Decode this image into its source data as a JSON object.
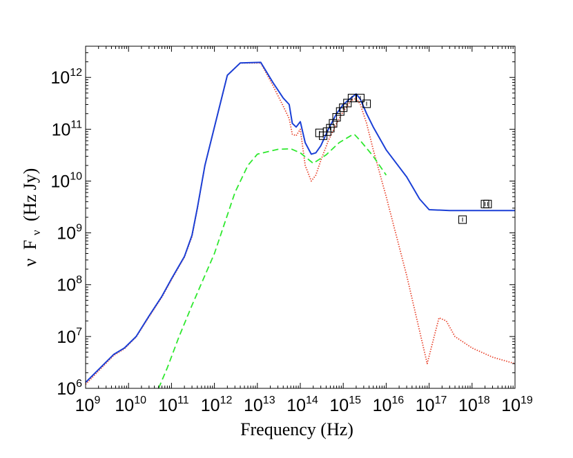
{
  "chart_data": {
    "type": "line",
    "title": "",
    "xlabel": "Frequency (Hz)",
    "ylabel_parts": {
      "nu": "ν",
      "F": "F",
      "sub": "ν",
      "unit": "(Hz Jy)"
    },
    "xscale": "log",
    "yscale": "log",
    "xlim": [
      1000000000.0,
      1e+19
    ],
    "ylim": [
      1000000.0,
      4000000000000.0
    ],
    "grid": false,
    "legend": "none",
    "x_ticks": [
      {
        "value": 1000000000.0,
        "base": "10",
        "exp": "9"
      },
      {
        "value": 10000000000.0,
        "base": "10",
        "exp": "10"
      },
      {
        "value": 100000000000.0,
        "base": "10",
        "exp": "11"
      },
      {
        "value": 1000000000000.0,
        "base": "10",
        "exp": "12"
      },
      {
        "value": 10000000000000.0,
        "base": "10",
        "exp": "13"
      },
      {
        "value": 100000000000000.0,
        "base": "10",
        "exp": "14"
      },
      {
        "value": 1000000000000000.0,
        "base": "10",
        "exp": "15"
      },
      {
        "value": 1e+16,
        "base": "10",
        "exp": "16"
      },
      {
        "value": 1e+17,
        "base": "10",
        "exp": "17"
      },
      {
        "value": 1e+18,
        "base": "10",
        "exp": "18"
      },
      {
        "value": 1e+19,
        "base": "10",
        "exp": "19"
      }
    ],
    "y_ticks": [
      {
        "value": 1000000.0,
        "base": "10",
        "exp": "6"
      },
      {
        "value": 10000000.0,
        "base": "10",
        "exp": "7"
      },
      {
        "value": 100000000.0,
        "base": "10",
        "exp": "8"
      },
      {
        "value": 1000000000.0,
        "base": "10",
        "exp": "9"
      },
      {
        "value": 10000000000.0,
        "base": "10",
        "exp": "10"
      },
      {
        "value": 100000000000.0,
        "base": "10",
        "exp": "11"
      },
      {
        "value": 1000000000000.0,
        "base": "10",
        "exp": "12"
      }
    ],
    "series": [
      {
        "style": "solid",
        "color": "#1a3fd6",
        "x": [
          1000000000.0,
          4500000000.0,
          8000000000.0,
          15000000000.0,
          30000000000.0,
          60000000000.0,
          100000000000.0,
          200000000000.0,
          300000000000.0,
          400000000000.0,
          600000000000.0,
          1000000000000.0,
          2000000000000.0,
          4000000000000.0,
          12000000000000.0,
          23000000000000.0,
          40000000000000.0,
          55000000000000.0,
          65000000000000.0,
          80000000000000.0,
          100000000000000.0,
          130000000000000.0,
          180000000000000.0,
          230000000000000.0,
          300000000000000.0,
          450000000000000.0,
          700000000000000.0,
          1000000000000000.0,
          1500000000000000.0,
          2000000000000000.0,
          2500000000000000.0,
          3500000000000000.0,
          5000000000000000.0,
          1e+16,
          3e+16,
          6e+16,
          1e+17,
          3e+17,
          1e+18,
          1e+19
        ],
        "y": [
          1300000.0,
          4500000.0,
          6000000.0,
          10000000.0,
          25000000.0,
          60000000.0,
          130000000.0,
          350000000.0,
          900000000.0,
          3000000000.0,
          20000000000.0,
          110000000000.0,
          1100000000000.0,
          1900000000000.0,
          1950000000000.0,
          800000000000.0,
          400000000000.0,
          300000000000.0,
          130000000000.0,
          110000000000.0,
          140000000000.0,
          55000000000.0,
          33000000000.0,
          35000000000.0,
          48000000000.0,
          100000000000.0,
          200000000000.0,
          300000000000.0,
          400000000000.0,
          480000000000.0,
          380000000000.0,
          200000000000.0,
          110000000000.0,
          40000000000.0,
          12000000000.0,
          4500000000.0,
          2800000000.0,
          2700000000.0,
          2700000000.0,
          2700000000.0
        ]
      },
      {
        "style": "dotted",
        "color": "#e8432c",
        "x": [
          1000000000.0,
          4500000000.0,
          8000000000.0,
          15000000000.0,
          30000000000.0,
          60000000000.0,
          100000000000.0,
          200000000000.0,
          300000000000.0,
          400000000000.0,
          600000000000.0,
          1000000000000.0,
          2000000000000.0,
          4000000000000.0,
          12000000000000.0,
          23000000000000.0,
          40000000000000.0,
          55000000000000.0,
          65000000000000.0,
          80000000000000.0,
          100000000000000.0,
          130000000000000.0,
          180000000000000.0,
          230000000000000.0,
          300000000000000.0,
          450000000000000.0,
          700000000000000.0,
          1000000000000000.0,
          1500000000000000.0,
          2000000000000000.0,
          2500000000000000.0,
          3500000000000000.0,
          5000000000000000.0,
          1e+16,
          3e+16,
          9e+16,
          1.7e+17,
          2.5e+17,
          4e+17,
          1e+18,
          3e+18,
          1e+19
        ],
        "y": [
          1200000.0,
          4300000.0,
          5800000.0,
          9800000.0,
          24000000.0,
          58000000.0,
          125000000.0,
          340000000.0,
          850000000.0,
          2900000000.0,
          20000000000.0,
          110000000000.0,
          1100000000000.0,
          1900000000000.0,
          1900000000000.0,
          700000000000.0,
          280000000000.0,
          160000000000.0,
          80000000000.0,
          75000000000.0,
          100000000000.0,
          20000000000.0,
          10000000000.0,
          13000000000.0,
          25000000000.0,
          60000000000.0,
          130000000000.0,
          220000000000.0,
          350000000000.0,
          400000000000.0,
          300000000000.0,
          130000000000.0,
          40000000000.0,
          5000000000.0,
          150000000.0,
          3000000.0,
          23000000.0,
          20000000.0,
          10000000.0,
          6000000.0,
          4000000.0,
          3000000.0
        ]
      },
      {
        "style": "dashed",
        "color": "#2ee82e",
        "x": [
          50000000000.0,
          80000000000.0,
          150000000000.0,
          300000000000.0,
          1000000000000.0,
          3000000000000.0,
          6000000000000.0,
          10000000000000.0,
          30000000000000.0,
          60000000000000.0,
          100000000000000.0,
          200000000000000.0,
          400000000000000.0,
          800000000000000.0,
          1500000000000000.0,
          1800000000000000.0,
          2500000000000000.0,
          5000000000000000.0,
          1e+16
        ],
        "y": [
          1000000.0,
          2500000.0,
          10000000.0,
          40000000.0,
          400000000.0,
          6000000000.0,
          20000000000.0,
          33000000000.0,
          41000000000.0,
          42000000000.0,
          35000000000.0,
          22000000000.0,
          32000000000.0,
          55000000000.0,
          75000000000.0,
          80000000000.0,
          60000000000.0,
          30000000000.0,
          13000000000.0
        ]
      }
    ],
    "data_points": {
      "marker": "square",
      "x": [
        280000000000000.0,
        340000000000000.0,
        420000000000000.0,
        500000000000000.0,
        580000000000000.0,
        700000000000000.0,
        850000000000000.0,
        1000000000000000.0,
        1250000000000000.0,
        1600000000000000.0,
        2500000000000000.0,
        3500000000000000.0,
        6e+17,
        2e+18,
        2.3e+18
      ],
      "y": [
        85000000000.0,
        75000000000.0,
        90000000000.0,
        105000000000.0,
        130000000000.0,
        170000000000.0,
        220000000000.0,
        260000000000.0,
        320000000000.0,
        400000000000.0,
        400000000000.0,
        310000000000.0,
        1800000000.0,
        3600000000.0,
        3600000000.0
      ]
    }
  }
}
